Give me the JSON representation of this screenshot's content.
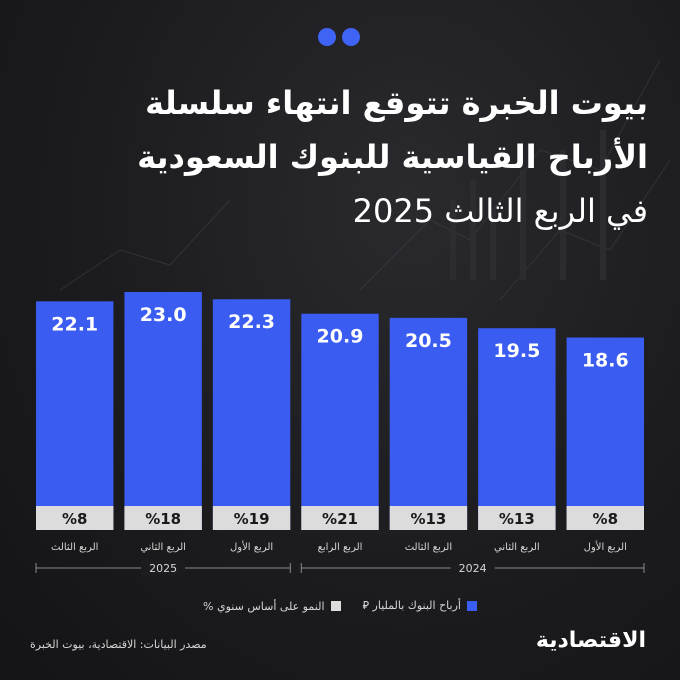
{
  "title_lines": [
    "بيوت الخبرة تتوقع انتهاء سلسلة",
    "الأرباح القياسية للبنوك السعودية",
    "في الربع الثالث 2025"
  ],
  "legend": {
    "profits": "أرباح البنوك بالمليار ⃁",
    "growth": "النمو على أساس سنوي %"
  },
  "source": "مصدر البيانات: الاقتصادية، بيوت الخبرة",
  "logo": "الاقتصادية",
  "colors": {
    "bar": "#3a5cf0",
    "growth_box": "#dcdcdc",
    "accent_dot": "#3f63f5"
  },
  "chart_data": {
    "type": "bar",
    "categories": [
      "الربع الأول",
      "الربع الثاني",
      "الربع الثالث",
      "الربع الرابع",
      "الربع الأول",
      "الربع الثاني",
      "الربع الثالث"
    ],
    "years": [
      {
        "label": "2024",
        "count": 4
      },
      {
        "label": "2025",
        "count": 3
      }
    ],
    "series": [
      {
        "name": "أرباح البنوك بالمليار",
        "values": [
          18.6,
          19.5,
          20.5,
          20.9,
          22.3,
          23.0,
          22.1
        ],
        "labels": [
          "18.6",
          "19.5",
          "20.5",
          "20.9",
          "22.3",
          "23.0",
          "22.1"
        ]
      },
      {
        "name": "النمو على أساس سنوي %",
        "values": [
          8,
          13,
          13,
          21,
          19,
          18,
          8
        ],
        "labels": [
          "%8",
          "%13",
          "%13",
          "%21",
          "%19",
          "%18",
          "%8"
        ]
      }
    ],
    "ylim": [
      0,
      23.0
    ],
    "legend_position": "bottom"
  }
}
